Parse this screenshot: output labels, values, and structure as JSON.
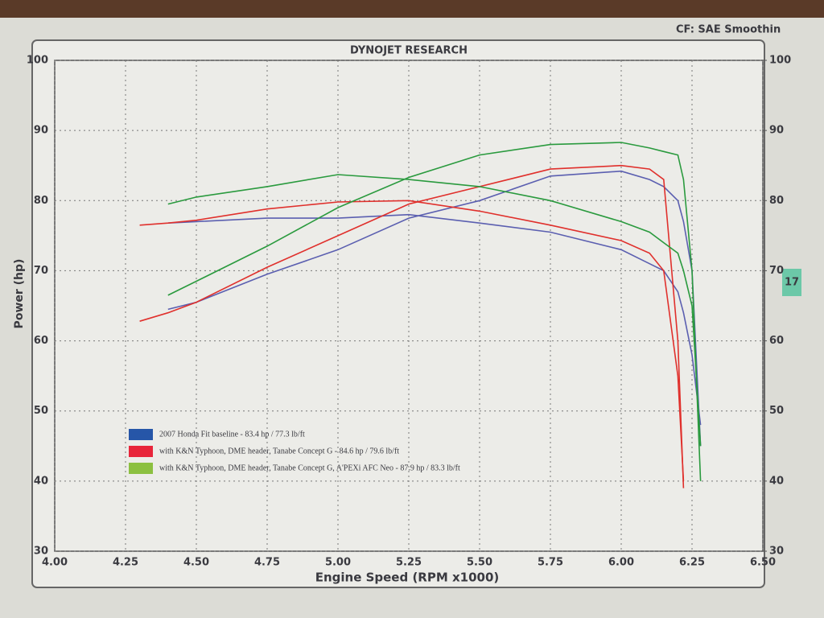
{
  "chart_data": {
    "type": "line",
    "title": "DYNOJET RESEARCH",
    "annotations": [
      "CF: SAE  Smoothin",
      "17"
    ],
    "xlabel": "Engine Speed (RPM x1000)",
    "ylabel": "Power (hp)",
    "x": [
      4.3,
      4.4,
      4.5,
      4.75,
      5.0,
      5.25,
      5.5,
      5.75,
      6.0,
      6.1,
      6.15,
      6.2,
      6.22,
      6.25,
      6.28
    ],
    "xlim": [
      4.0,
      6.5
    ],
    "xticks": [
      {
        "value": 4.0,
        "label": "4.00"
      },
      {
        "value": 4.25,
        "label": "4.25"
      },
      {
        "value": 4.5,
        "label": "4.50"
      },
      {
        "value": 4.75,
        "label": "4.75"
      },
      {
        "value": 5.0,
        "label": "5.00"
      },
      {
        "value": 5.25,
        "label": "5.25"
      },
      {
        "value": 5.5,
        "label": "5.50"
      },
      {
        "value": 5.75,
        "label": "5.75"
      },
      {
        "value": 6.0,
        "label": "6.00"
      },
      {
        "value": 6.25,
        "label": "6.25"
      },
      {
        "value": 6.5,
        "label": "6.50"
      }
    ],
    "ylim": [
      30,
      100
    ],
    "yticks": [
      30,
      40,
      50,
      60,
      70,
      80,
      90,
      100
    ],
    "y2lim": [
      30,
      100
    ],
    "y2ticks": [
      30,
      40,
      50,
      60,
      70,
      80,
      90,
      100
    ],
    "grid": true,
    "legend": "lower left",
    "series": [
      {
        "name": "2007 Honda Fit baseline  -  83.4 hp / 77.3 lb/ft",
        "color": "#5b5fb0",
        "legend_color": "#2656a8",
        "values": [
          null,
          64.5,
          65.5,
          69.5,
          73,
          77.5,
          80,
          83.5,
          84.2,
          83,
          82,
          80,
          77,
          70,
          45
        ],
        "y2_values": [
          null,
          76.8,
          77,
          77.5,
          77.5,
          78,
          76.8,
          75.5,
          73,
          71,
          70,
          67,
          64,
          58,
          48
        ]
      },
      {
        "name": "with K&N Typhoon, DME header, Tanabe Concept G  -  84.6 hp / 79.6 lb/ft",
        "color": "#e0302c",
        "legend_color": "#e8253a",
        "values": [
          62.8,
          64,
          65.5,
          70.5,
          75,
          79.5,
          82,
          84.5,
          85,
          84.5,
          83,
          60,
          39,
          null,
          null
        ],
        "y2_values": [
          76.5,
          76.8,
          77.2,
          78.8,
          79.8,
          80,
          78.5,
          76.5,
          74.3,
          72.5,
          70,
          55,
          40,
          null,
          null
        ]
      },
      {
        "name": "with K&N Typhoon, DME header, Tanabe Concept G, A'PEXi AFC Neo  -  87.9 hp / 83.3 lb/ft",
        "color": "#2a9a3e",
        "legend_color": "#8cc040",
        "values": [
          null,
          66.5,
          68.5,
          73.5,
          79,
          83.3,
          86.5,
          88,
          88.3,
          87.5,
          87,
          86.5,
          83,
          70,
          40
        ],
        "y2_values": [
          null,
          79.5,
          80.5,
          82,
          83.7,
          83,
          82,
          80,
          77,
          75.5,
          74,
          72.5,
          70,
          65,
          45
        ]
      }
    ]
  }
}
